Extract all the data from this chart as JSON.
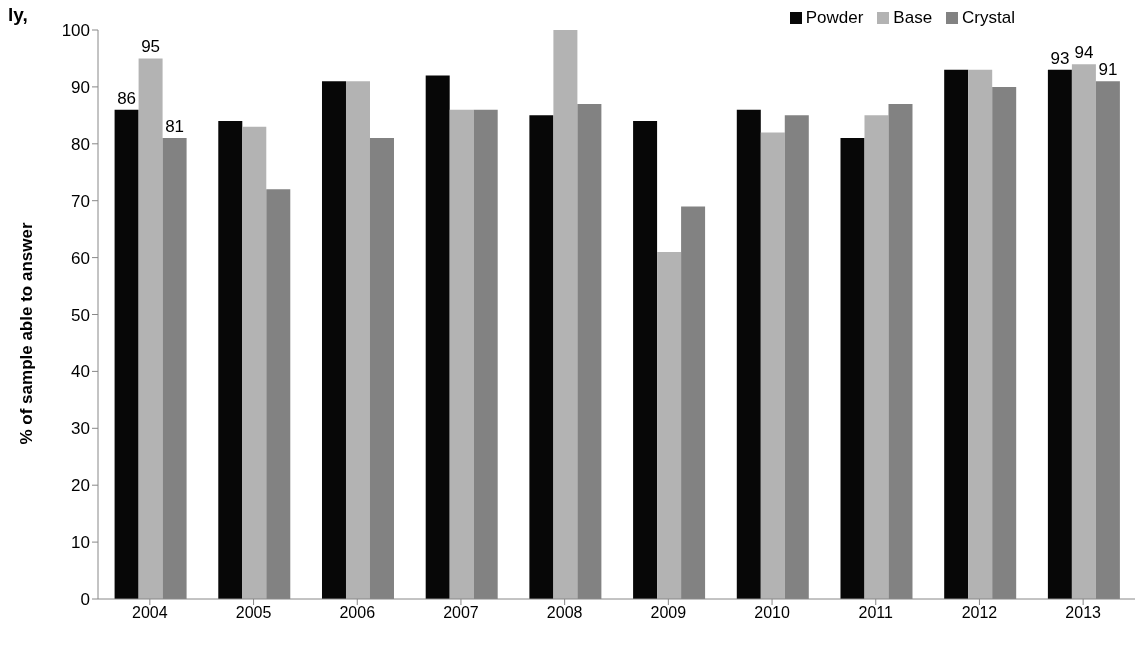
{
  "chart_data": {
    "type": "bar",
    "annotations": [
      "ly,"
    ],
    "ylabel": "% of sample able to answer",
    "categories": [
      "2004",
      "2005",
      "2006",
      "2007",
      "2008",
      "2009",
      "2010",
      "2011",
      "2012",
      "2013"
    ],
    "series": [
      {
        "name": "Powder",
        "color": "#070707",
        "values": [
          86,
          84,
          91,
          92,
          85,
          84,
          86,
          81,
          93,
          93
        ],
        "value_labels": [
          "86",
          null,
          null,
          null,
          null,
          null,
          null,
          null,
          null,
          "93"
        ]
      },
      {
        "name": "Base",
        "color": "#b3b3b3",
        "values": [
          95,
          83,
          91,
          86,
          100,
          61,
          82,
          85,
          93,
          94
        ],
        "value_labels": [
          "95",
          null,
          null,
          null,
          null,
          null,
          null,
          null,
          null,
          "94"
        ]
      },
      {
        "name": "Crystal",
        "color": "#828282",
        "values": [
          81,
          72,
          81,
          86,
          87,
          69,
          85,
          87,
          90,
          91
        ],
        "value_labels": [
          "81",
          null,
          null,
          null,
          null,
          null,
          null,
          null,
          null,
          "91"
        ]
      }
    ],
    "ylim": [
      0,
      100
    ],
    "yticks": [
      0,
      10,
      20,
      30,
      40,
      50,
      60,
      70,
      80,
      90,
      100
    ],
    "grid": false,
    "legend": "top right"
  }
}
